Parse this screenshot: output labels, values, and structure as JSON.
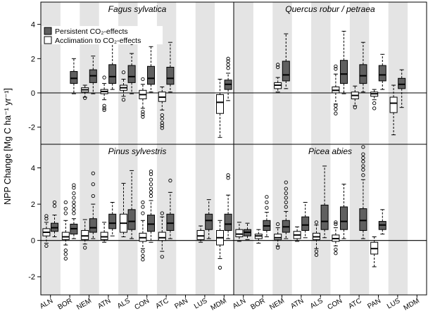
{
  "chart_data": {
    "type": "box",
    "ylabel": "NPP Change [Mg C ha⁻¹ yr⁻¹]",
    "ylim": [
      -3.0,
      5.3
    ],
    "yticks": [
      -2,
      0,
      2,
      4
    ],
    "categories": [
      "ALN",
      "BOR",
      "NEM",
      "ATN",
      "ALS",
      "CON",
      "ATC",
      "PAN",
      "LUS",
      "MDM"
    ],
    "legend": {
      "position": "top-left",
      "items": [
        {
          "label": "Persistent CO₂-effects",
          "color": "#606060"
        },
        {
          "label": "Acclimation to CO₂-effects",
          "color": "#ffffff"
        }
      ]
    },
    "colors": {
      "persistent": "#606060",
      "acclimation": "#ffffff",
      "stripe": "#e4e4e4",
      "axis": "#000000"
    },
    "panels": [
      {
        "title": "Fagus sylvatica",
        "series": [
          {
            "name": "Acclimation to CO2-effects",
            "boxes": [
              {
                "cat": "NEM",
                "whislo": -0.25,
                "q1": 0.05,
                "med": 0.18,
                "q3": 0.3,
                "whishi": 0.45,
                "fliers": [
                  -0.3
                ]
              },
              {
                "cat": "ATN",
                "whislo": -0.4,
                "q1": -0.05,
                "med": 0.08,
                "q3": 0.2,
                "whishi": 0.55,
                "fliers": [
                  -0.75,
                  -0.9,
                  -1.0,
                  0.9
                ]
              },
              {
                "cat": "ALS",
                "whislo": -0.2,
                "q1": 0.15,
                "med": 0.3,
                "q3": 0.45,
                "whishi": 0.8,
                "fliers": [
                  -0.4,
                  1.2
                ]
              },
              {
                "cat": "CON",
                "whislo": -0.9,
                "q1": -0.35,
                "med": -0.1,
                "q3": 0.15,
                "whishi": 0.5,
                "fliers": [
                  -1.1,
                  -1.25,
                  -1.4,
                  0.8
                ]
              },
              {
                "cat": "ATC",
                "whislo": -1.0,
                "q1": -0.5,
                "med": -0.25,
                "q3": 0.05,
                "whishi": 0.35,
                "fliers": [
                  -1.3,
                  -1.5,
                  -1.75,
                  -1.9,
                  -2.05
                ]
              },
              {
                "cat": "MDM",
                "whislo": -2.6,
                "q1": -1.2,
                "med": -0.55,
                "q3": -0.1,
                "whishi": 0.8,
                "fliers": []
              }
            ]
          },
          {
            "name": "Persistent CO2-effects",
            "boxes": [
              {
                "cat": "BOR",
                "whislo": -0.05,
                "q1": 0.55,
                "med": 0.85,
                "q3": 1.25,
                "whishi": 2.0,
                "fliers": []
              },
              {
                "cat": "NEM",
                "whislo": -0.05,
                "q1": 0.6,
                "med": 1.0,
                "q3": 1.35,
                "whishi": 2.15,
                "fliers": [
                  3.35,
                  3.55
                ]
              },
              {
                "cat": "ATN",
                "whislo": 0.2,
                "q1": 0.55,
                "med": 0.95,
                "q3": 1.65,
                "whishi": 3.15,
                "fliers": []
              },
              {
                "cat": "ALS",
                "whislo": -0.05,
                "q1": 0.6,
                "med": 0.95,
                "q3": 1.6,
                "whishi": 2.3,
                "fliers": [
                  2.9,
                  3.25
                ]
              },
              {
                "cat": "CON",
                "whislo": 0.05,
                "q1": 0.5,
                "med": 0.85,
                "q3": 1.55,
                "whishi": 2.7,
                "fliers": []
              },
              {
                "cat": "ATC",
                "whislo": 0.05,
                "q1": 0.5,
                "med": 0.85,
                "q3": 1.5,
                "whishi": 2.95,
                "fliers": []
              },
              {
                "cat": "MDM",
                "whislo": -0.45,
                "q1": 0.2,
                "med": 0.5,
                "q3": 0.75,
                "whishi": 1.15,
                "fliers": [
                  1.45,
                  1.65,
                  1.85,
                  2.0
                ]
              }
            ]
          }
        ]
      },
      {
        "title": "Quercus robur / petraea",
        "series": [
          {
            "name": "Acclimation to CO2-effects",
            "boxes": [
              {
                "cat": "NEM",
                "whislo": 0.05,
                "q1": 0.25,
                "med": 0.45,
                "q3": 0.6,
                "whishi": 0.9,
                "fliers": [
                  1.5,
                  1.65
                ]
              },
              {
                "cat": "CON",
                "whislo": -0.65,
                "q1": 0.0,
                "med": 0.15,
                "q3": 0.35,
                "whishi": 1.1,
                "fliers": [
                  -0.75,
                  -0.95,
                  -1.2,
                  1.4,
                  1.55
                ]
              },
              {
                "cat": "ATC",
                "whislo": -0.75,
                "q1": -0.35,
                "med": -0.15,
                "q3": 0.05,
                "whishi": 0.4,
                "fliers": [
                  -0.85
                ]
              },
              {
                "cat": "PAN",
                "whislo": -0.4,
                "q1": -0.2,
                "med": -0.05,
                "q3": 0.05,
                "whishi": 0.2,
                "fliers": [
                  -0.6,
                  -0.9
                ]
              },
              {
                "cat": "LUS",
                "whislo": -2.45,
                "q1": -1.15,
                "med": -0.6,
                "q3": -0.25,
                "whishi": 0.45,
                "fliers": []
              }
            ]
          },
          {
            "name": "Persistent CO2-effects",
            "boxes": [
              {
                "cat": "NEM",
                "whislo": 0.25,
                "q1": 0.7,
                "med": 1.05,
                "q3": 1.85,
                "whishi": 3.45,
                "fliers": []
              },
              {
                "cat": "CON",
                "whislo": -0.05,
                "q1": 0.55,
                "med": 1.1,
                "q3": 1.9,
                "whishi": 3.6,
                "fliers": []
              },
              {
                "cat": "ATC",
                "whislo": 0.05,
                "q1": 0.55,
                "med": 1.0,
                "q3": 1.65,
                "whishi": 2.95,
                "fliers": []
              },
              {
                "cat": "PAN",
                "whislo": 0.2,
                "q1": 0.7,
                "med": 1.05,
                "q3": 1.6,
                "whishi": 2.25,
                "fliers": []
              },
              {
                "cat": "LUS",
                "whislo": -0.85,
                "q1": 0.25,
                "med": 0.5,
                "q3": 0.85,
                "whishi": 1.35,
                "fliers": []
              }
            ]
          }
        ]
      },
      {
        "title": "Pinus sylvestris",
        "series": [
          {
            "name": "Acclimation to CO2-effects",
            "boxes": [
              {
                "cat": "ALN",
                "whislo": -0.15,
                "q1": 0.25,
                "med": 0.45,
                "q3": 0.65,
                "whishi": 1.0,
                "fliers": [
                  -0.3,
                  1.2,
                  1.35
                ]
              },
              {
                "cat": "BOR",
                "whislo": -0.25,
                "q1": 0.05,
                "med": 0.2,
                "q3": 0.45,
                "whishi": 1.1,
                "fliers": [
                  -0.55,
                  -0.75,
                  -1.0,
                  1.5,
                  1.75,
                  2.1
                ]
              },
              {
                "cat": "NEM",
                "whislo": -0.2,
                "q1": 0.05,
                "med": 0.25,
                "q3": 0.55,
                "whishi": 1.15,
                "fliers": [
                  -0.4
                ]
              },
              {
                "cat": "ATN",
                "whislo": -0.1,
                "q1": 0.05,
                "med": 0.2,
                "q3": 0.45,
                "whishi": 1.0,
                "fliers": []
              },
              {
                "cat": "ALS",
                "whislo": 0.2,
                "q1": 0.45,
                "med": 0.95,
                "q3": 1.45,
                "whishi": 3.15,
                "fliers": []
              },
              {
                "cat": "CON",
                "whislo": -0.45,
                "q1": -0.05,
                "med": 0.15,
                "q3": 0.4,
                "whishi": 1.1,
                "fliers": [
                  -0.6,
                  -0.85,
                  -1.05,
                  1.5,
                  1.85,
                  2.1
                ]
              },
              {
                "cat": "ATC",
                "whislo": -0.6,
                "q1": 0.0,
                "med": 0.15,
                "q3": 0.45,
                "whishi": 1.3,
                "fliers": [
                  -0.9,
                  1.5
                ]
              },
              {
                "cat": "LUS",
                "whislo": -0.1,
                "q1": 0.05,
                "med": 0.25,
                "q3": 0.55,
                "whishi": 0.8,
                "fliers": []
              },
              {
                "cat": "MDM",
                "whislo": -1.0,
                "q1": -0.25,
                "med": 0.15,
                "q3": 0.55,
                "whishi": 1.1,
                "fliers": [
                  -1.5
                ]
              }
            ]
          },
          {
            "name": "Persistent CO2-effects",
            "boxes": [
              {
                "cat": "ALN",
                "whislo": 0.2,
                "q1": 0.5,
                "med": 0.7,
                "q3": 0.95,
                "whishi": 1.4,
                "fliers": [
                  1.9,
                  2.1
                ]
              },
              {
                "cat": "BOR",
                "whislo": 0.1,
                "q1": 0.35,
                "med": 0.65,
                "q3": 0.9,
                "whishi": 1.2,
                "fliers": [
                  1.5,
                  1.7,
                  1.9,
                  2.1,
                  2.35,
                  2.6,
                  2.9,
                  3.05
                ]
              },
              {
                "cat": "NEM",
                "whislo": 0.1,
                "q1": 0.45,
                "med": 0.7,
                "q3": 1.2,
                "whishi": 2.0,
                "fliers": [
                  2.45,
                  3.1,
                  3.7
                ]
              },
              {
                "cat": "ATN",
                "whislo": 0.25,
                "q1": 0.65,
                "med": 0.95,
                "q3": 1.45,
                "whishi": 2.1,
                "fliers": []
              },
              {
                "cat": "ALS",
                "whislo": 0.1,
                "q1": 0.6,
                "med": 1.05,
                "q3": 1.7,
                "whishi": 3.85,
                "fliers": []
              },
              {
                "cat": "CON",
                "whislo": -0.1,
                "q1": 0.5,
                "med": 0.9,
                "q3": 1.4,
                "whishi": 2.2,
                "fliers": [
                  2.45,
                  2.65,
                  2.85,
                  3.1,
                  3.35,
                  3.65,
                  3.8
                ]
              },
              {
                "cat": "ATC",
                "whislo": 0.1,
                "q1": 0.55,
                "med": 0.95,
                "q3": 1.45,
                "whishi": 2.65,
                "fliers": [
                  3.3
                ]
              },
              {
                "cat": "LUS",
                "whislo": 0.1,
                "q1": 0.6,
                "med": 1.1,
                "q3": 1.45,
                "whishi": 2.25,
                "fliers": []
              },
              {
                "cat": "MDM",
                "whislo": 0.1,
                "q1": 0.55,
                "med": 0.9,
                "q3": 1.45,
                "whishi": 2.5,
                "fliers": [
                  3.45,
                  3.6
                ]
              }
            ]
          }
        ]
      },
      {
        "title": "Picea abies",
        "series": [
          {
            "name": "Acclimation to CO2-effects",
            "boxes": [
              {
                "cat": "ALN",
                "whislo": -0.05,
                "q1": 0.2,
                "med": 0.35,
                "q3": 0.6,
                "whishi": 1.0,
                "fliers": []
              },
              {
                "cat": "BOR",
                "whislo": -0.15,
                "q1": 0.1,
                "med": 0.25,
                "q3": 0.35,
                "whishi": 0.6,
                "fliers": []
              },
              {
                "cat": "NEM",
                "whislo": -0.3,
                "q1": 0.05,
                "med": 0.15,
                "q3": 0.35,
                "whishi": 0.7,
                "fliers": [
                  -0.4,
                  0.9
                ]
              },
              {
                "cat": "ATN",
                "whislo": -0.05,
                "q1": 0.1,
                "med": 0.3,
                "q3": 0.5,
                "whishi": 0.75,
                "fliers": []
              },
              {
                "cat": "ALS",
                "whislo": -0.45,
                "q1": 0.05,
                "med": 0.2,
                "q3": 0.4,
                "whishi": 0.85,
                "fliers": [
                  -0.6,
                  -0.8,
                  1.0
                ]
              },
              {
                "cat": "CON",
                "whislo": -0.3,
                "q1": -0.05,
                "med": 0.1,
                "q3": 0.3,
                "whishi": 0.7,
                "fliers": [
                  -0.5,
                  -0.7,
                  0.9,
                  1.0
                ]
              },
              {
                "cat": "PAN",
                "whislo": -1.45,
                "q1": -0.75,
                "med": -0.45,
                "q3": -0.1,
                "whishi": 0.2,
                "fliers": []
              }
            ]
          },
          {
            "name": "Persistent CO2-effects",
            "boxes": [
              {
                "cat": "ALN",
                "whislo": 0.05,
                "q1": 0.25,
                "med": 0.45,
                "q3": 0.6,
                "whishi": 0.95,
                "fliers": []
              },
              {
                "cat": "BOR",
                "whislo": 0.2,
                "q1": 0.55,
                "med": 0.8,
                "q3": 1.1,
                "whishi": 1.55,
                "fliers": [
                  1.8,
                  2.1,
                  2.4
                ]
              },
              {
                "cat": "NEM",
                "whislo": 0.1,
                "q1": 0.45,
                "med": 0.75,
                "q3": 1.1,
                "whishi": 1.6,
                "fliers": [
                  1.85,
                  2.1,
                  2.35,
                  2.6,
                  2.85,
                  3.2
                ]
              },
              {
                "cat": "ATN",
                "whislo": 0.15,
                "q1": 0.55,
                "med": 0.85,
                "q3": 1.3,
                "whishi": 2.1,
                "fliers": []
              },
              {
                "cat": "ALS",
                "whislo": 0.15,
                "q1": 0.6,
                "med": 1.05,
                "q3": 1.95,
                "whishi": 4.1,
                "fliers": []
              },
              {
                "cat": "CON",
                "whislo": 0.1,
                "q1": 0.6,
                "med": 1.05,
                "q3": 1.85,
                "whishi": 3.1,
                "fliers": []
              },
              {
                "cat": "ATC",
                "whislo": 0.1,
                "q1": 0.55,
                "med": 1.1,
                "q3": 1.75,
                "whishi": 3.35,
                "fliers": [
                  3.6,
                  3.9,
                  4.1,
                  4.35,
                  4.55,
                  4.75,
                  5.15
                ]
              },
              {
                "cat": "PAN",
                "whislo": 0.35,
                "q1": 0.6,
                "med": 0.85,
                "q3": 1.05,
                "whishi": 1.7,
                "fliers": []
              }
            ]
          }
        ]
      }
    ]
  }
}
